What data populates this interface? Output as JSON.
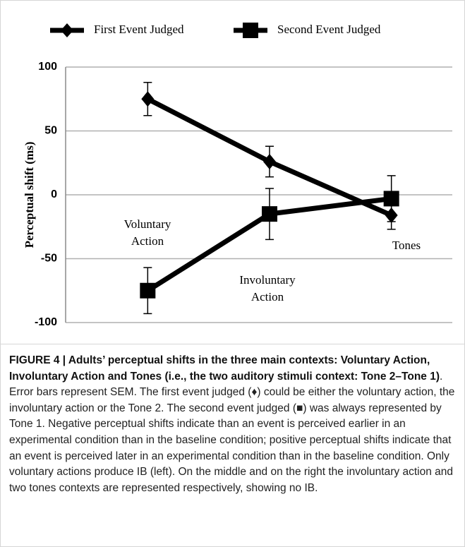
{
  "chart_data": {
    "type": "line",
    "ylabel": "Perceptual shift (ms)",
    "categories": [
      "Voluntary Action",
      "Involuntary Action",
      "Tones"
    ],
    "series": [
      {
        "name": "First Event Judged",
        "color": "#000000",
        "marker": "diamond",
        "values": [
          75,
          26,
          -16
        ],
        "errors": [
          13,
          12,
          11
        ]
      },
      {
        "name": "Second Event Judged",
        "color": "#000000",
        "marker": "square",
        "values": [
          -75,
          -15,
          -3
        ],
        "errors": [
          18,
          20,
          18
        ]
      }
    ],
    "annotations": [
      {
        "lines": [
          "Voluntary",
          "Action"
        ]
      },
      {
        "lines": [
          "Involuntary",
          "Action"
        ]
      },
      {
        "lines": [
          "Tones"
        ]
      }
    ],
    "ylim": [
      -100,
      100
    ],
    "yticks": [
      -100,
      -50,
      0,
      50,
      100
    ],
    "grid": true
  },
  "caption": {
    "bold": "FIGURE 4 | Adults’ perceptual shifts in the three main contexts: Voluntary Action, Involuntary Action and Tones (i.e., the two auditory stimuli context: Tone 2–Tone 1)",
    "text": ". Error bars represent SEM. The first event judged (♦) could be either the voluntary action, the involuntary action or the Tone 2. The second event judged (■) was always represented by Tone 1. Negative perceptual shifts indicate than an event is perceived earlier in an experimental condition than in the baseline condition; positive perceptual shifts indicate that an event is perceived later in an experimental condition than in the baseline condition. Only voluntary actions produce IB (left). On the middle and on the right the involuntary action and two tones contexts are represented respectively, showing no IB."
  }
}
